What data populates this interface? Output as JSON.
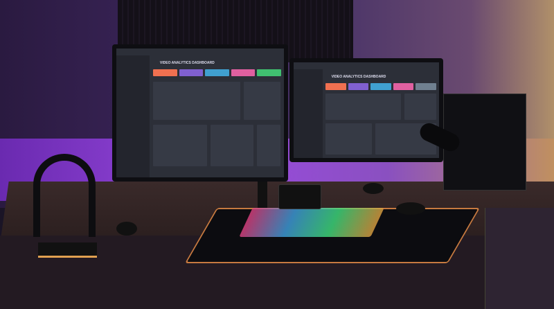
{
  "scene": "desk setup",
  "left_monitor": {
    "dashboard_title": "VIDEO ANALYTICS DASHBOARD"
  },
  "right_monitor": {
    "dashboard_title": "VIDEO ANALYTICS DASHBOARD"
  },
  "colors": {
    "card_colors": [
      "#f07050",
      "#8060d0",
      "#40a0d0",
      "#e060a0",
      "#40c070",
      "#708090"
    ],
    "ambient": "#9a4ae0"
  }
}
